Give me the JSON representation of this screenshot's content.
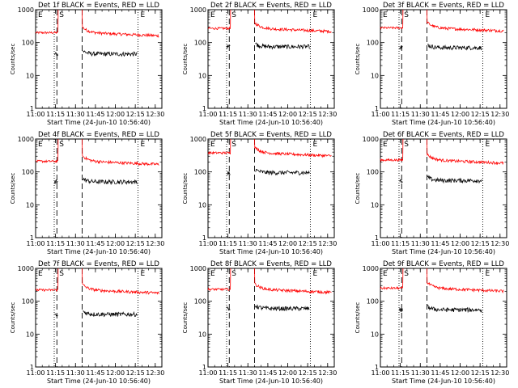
{
  "chart_data": {
    "type": "line",
    "layout_grid": "3x3",
    "yscale": "log",
    "ylim": [
      1,
      1000
    ],
    "y_ticks": [
      "1",
      "10",
      "100",
      "1000"
    ],
    "ylabel": "Counts/sec",
    "xlim": [
      "11:00",
      "12:35"
    ],
    "x_ticks": [
      "11:00",
      "11:15",
      "11:30",
      "11:45",
      "12:00",
      "12:15",
      "12:30"
    ],
    "xlabel": "Start Time (24-Jun-10 10:56:40)",
    "markers": {
      "dotted": [
        "11:14",
        "12:17"
      ],
      "dashed": [
        "11:16",
        "11:35"
      ],
      "labels": [
        {
          "text": "E",
          "at": "11:00"
        },
        {
          "text": "S",
          "at": "11:16"
        },
        {
          "text": "E",
          "at": "12:17"
        }
      ]
    },
    "gap": [
      "11:17",
      "11:35"
    ],
    "colors": {
      "events": "#000000",
      "lld": "#ff0000"
    },
    "panels": [
      {
        "title": "Det 1f BLACK = Events, RED = LLD",
        "lld_level": 200,
        "events_level": 45
      },
      {
        "title": "Det 2f BLACK = Events, RED = LLD",
        "lld_level": 270,
        "events_level": 75
      },
      {
        "title": "Det 3f BLACK = Events, RED = LLD",
        "lld_level": 280,
        "events_level": 70
      },
      {
        "title": "Det 4f BLACK = Events, RED = LLD",
        "lld_level": 210,
        "events_level": 50
      },
      {
        "title": "Det 5f BLACK = Events, RED = LLD",
        "lld_level": 380,
        "events_level": 95
      },
      {
        "title": "Det 6f BLACK = Events, RED = LLD",
        "lld_level": 230,
        "events_level": 55
      },
      {
        "title": "Det 7f BLACK = Events, RED = LLD",
        "lld_level": 220,
        "events_level": 40
      },
      {
        "title": "Det 8f BLACK = Events, RED = LLD",
        "lld_level": 230,
        "events_level": 60
      },
      {
        "title": "Det 9f BLACK = Events, RED = LLD",
        "lld_level": 250,
        "events_level": 55
      }
    ]
  }
}
